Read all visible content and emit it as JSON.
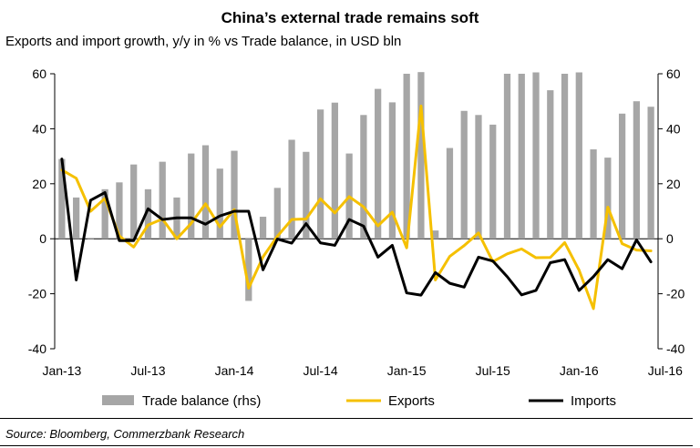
{
  "header": {
    "title": "China’s external trade remains soft",
    "subtitle": "Exports and import growth, y/y in % vs Trade balance, in USD bln"
  },
  "footer": {
    "source": "Source: Bloomberg, Commerzbank Research"
  },
  "colors": {
    "bar": "#a6a6a6",
    "exports": "#f5c000",
    "imports": "#000000",
    "axis": "#000000"
  },
  "chart_data": {
    "type": "bar+line",
    "title": "China’s external trade remains soft",
    "subtitle": "Exports and import growth, y/y in % vs Trade balance, in USD bln",
    "x_tick_labels": [
      "Jan-13",
      "Jul-13",
      "Jan-14",
      "Jul-14",
      "Jan-15",
      "Jul-15",
      "Jan-16",
      "Jul-16"
    ],
    "y_left": {
      "min": -40,
      "max": 60,
      "ticks": [
        -40,
        -20,
        0,
        20,
        40,
        60
      ],
      "tick_labels": [
        "-40",
        "-20",
        "0",
        "20",
        "40",
        "60"
      ]
    },
    "y_right": {
      "min": -40,
      "max": 60,
      "ticks": [
        -40,
        -20,
        0,
        20,
        40,
        60
      ],
      "tick_labels": [
        "-40",
        "-20",
        "0",
        "20",
        "40",
        "60"
      ]
    },
    "legend_position": "bottom",
    "series": [
      {
        "name": "Trade balance (rhs)",
        "type": "bar",
        "axis": "right",
        "values": [
          29,
          15,
          0,
          18,
          20.5,
          27,
          18,
          28,
          15,
          31,
          34,
          25.5,
          32,
          -22.6,
          8,
          18.5,
          36,
          31.6,
          47,
          49.5,
          31,
          45,
          54.5,
          49.6,
          60,
          60.6,
          3,
          33,
          46.5,
          45,
          41.5,
          60,
          60,
          60.5,
          54,
          60,
          60.5,
          32.5,
          29.5,
          45.5,
          50,
          48
        ]
      },
      {
        "name": "Exports",
        "type": "line",
        "axis": "left",
        "values": [
          25,
          22,
          10,
          14.7,
          1,
          -3,
          5,
          7.2,
          0,
          5.6,
          12.7,
          4.3,
          10.6,
          -18,
          -6.6,
          0.9,
          7,
          7.2,
          14.5,
          9.4,
          15.3,
          11.6,
          4.7,
          9.7,
          -3.3,
          48.3,
          -15,
          -6.4,
          -2.5,
          2.1,
          -8.3,
          -5.5,
          -3.7,
          -6.9,
          -6.8,
          -1.4,
          -11.4,
          -25.4,
          11.5,
          -1.8,
          -4.1,
          -4.4
        ]
      },
      {
        "name": "Imports",
        "type": "line",
        "axis": "left",
        "values": [
          29,
          -15,
          14,
          16.8,
          -0.7,
          -0.7,
          10.9,
          7,
          7.6,
          7.6,
          5.3,
          8.3,
          10,
          10,
          -11.3,
          -0.1,
          -1.6,
          5.5,
          -1.5,
          -2.4,
          7,
          4.6,
          -6.7,
          -2.4,
          -19.7,
          -20.5,
          -12.3,
          -16.2,
          -17.6,
          -6.7,
          -8.1,
          -13.8,
          -20.4,
          -18.8,
          -8.7,
          -7.6,
          -18.8,
          -13.8,
          -7.6,
          -10.9,
          -0.4,
          -8.4
        ]
      }
    ]
  }
}
